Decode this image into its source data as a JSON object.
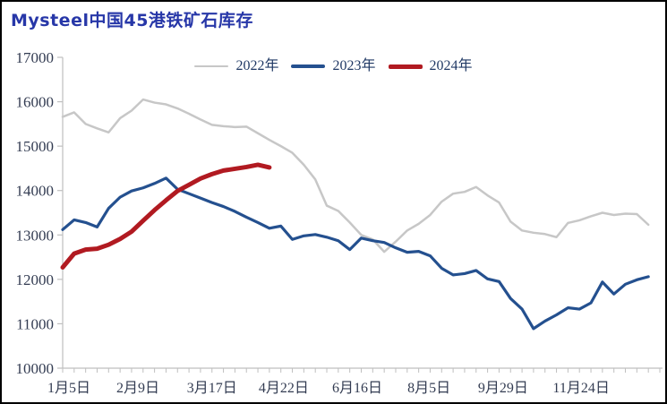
{
  "chart_data": {
    "type": "line",
    "title": "Mysteel中国45港铁矿石库存",
    "title_color": "#2737a8",
    "axis_color": "#bfbfbf",
    "tick_label_color": "#333c52",
    "legend_text_color": "#1f3864",
    "background_color": "#ffffff",
    "grid": false,
    "legend_position": "top-center",
    "ylabel": "",
    "xlabel": "",
    "ylim": [
      10000,
      17000
    ],
    "yticks": [
      10000,
      11000,
      12000,
      13000,
      14000,
      15000,
      16000,
      17000
    ],
    "x_intervals": 52,
    "xtick_labels": [
      {
        "pos": 0.55,
        "label": "1月5日"
      },
      {
        "pos": 6.55,
        "label": "2月9日"
      },
      {
        "pos": 13.0,
        "label": "3月17日"
      },
      {
        "pos": 19.25,
        "label": "4月22日"
      },
      {
        "pos": 25.65,
        "label": "6月16日"
      },
      {
        "pos": 31.9,
        "label": "8月5日"
      },
      {
        "pos": 38.35,
        "label": "9月29日"
      },
      {
        "pos": 45.15,
        "label": "11月24日"
      }
    ],
    "series": [
      {
        "key": "2022",
        "name": "2022年",
        "color": "#c7c7c7",
        "width": 2.5,
        "values": [
          15660,
          15760,
          15500,
          15400,
          15310,
          15630,
          15800,
          16050,
          15980,
          15940,
          15850,
          15730,
          15600,
          15480,
          15450,
          15430,
          15440,
          15290,
          15140,
          15000,
          14850,
          14580,
          14250,
          13660,
          13540,
          13280,
          13000,
          12900,
          12620,
          12850,
          13100,
          13250,
          13450,
          13750,
          13930,
          13970,
          14080,
          13890,
          13730,
          13300,
          13100,
          13050,
          13020,
          12950,
          13270,
          13330,
          13420,
          13500,
          13450,
          13480,
          13470,
          13230
        ]
      },
      {
        "key": "2023",
        "name": "2023年",
        "color": "#24508f",
        "width": 3.2,
        "values": [
          13120,
          13340,
          13280,
          13180,
          13600,
          13850,
          13990,
          14060,
          14160,
          14280,
          14030,
          13930,
          13830,
          13730,
          13640,
          13530,
          13400,
          13280,
          13150,
          13200,
          12900,
          12980,
          13010,
          12950,
          12870,
          12670,
          12930,
          12870,
          12830,
          12710,
          12610,
          12630,
          12530,
          12250,
          12100,
          12130,
          12200,
          12010,
          11950,
          11570,
          11330,
          10890,
          11060,
          11200,
          11360,
          11330,
          11470,
          11940,
          11670,
          11890,
          11990,
          12060
        ]
      },
      {
        "key": "2024",
        "name": "2024年",
        "color": "#b11a21",
        "width": 5,
        "values": [
          12270,
          12580,
          12670,
          12690,
          12780,
          12910,
          13075,
          13320,
          13560,
          13780,
          13990,
          14130,
          14270,
          14370,
          14450,
          14490,
          14530,
          14580,
          14520
        ]
      }
    ]
  }
}
